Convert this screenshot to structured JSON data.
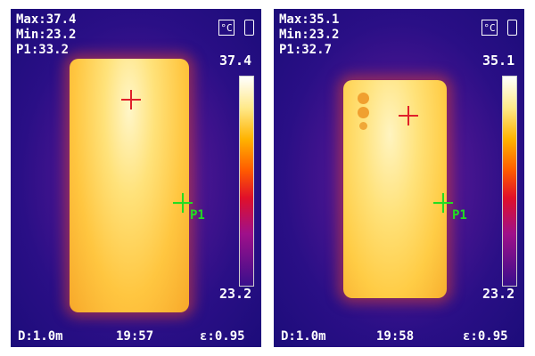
{
  "panels": [
    {
      "max": "Max:37.4",
      "min": "Min:23.2",
      "p1": "P1:33.2",
      "scale_max": "37.4",
      "scale_min": "23.2",
      "distance": "D:1.0m",
      "time": "19:57",
      "emissivity": "ε:0.95",
      "marker_label": "P1",
      "unit_icon": "celsius-icon",
      "battery_icon": "battery-icon"
    },
    {
      "max": "Max:35.1",
      "min": "Min:23.2",
      "p1": "P1:32.7",
      "scale_max": "35.1",
      "scale_min": "23.2",
      "distance": "D:1.0m",
      "time": "19:58",
      "emissivity": "ε:0.95",
      "marker_label": "P1",
      "unit_icon": "celsius-icon",
      "battery_icon": "battery-icon"
    }
  ],
  "colors": {
    "hot_marker": "#e0202a",
    "point_marker": "#22dd22"
  }
}
